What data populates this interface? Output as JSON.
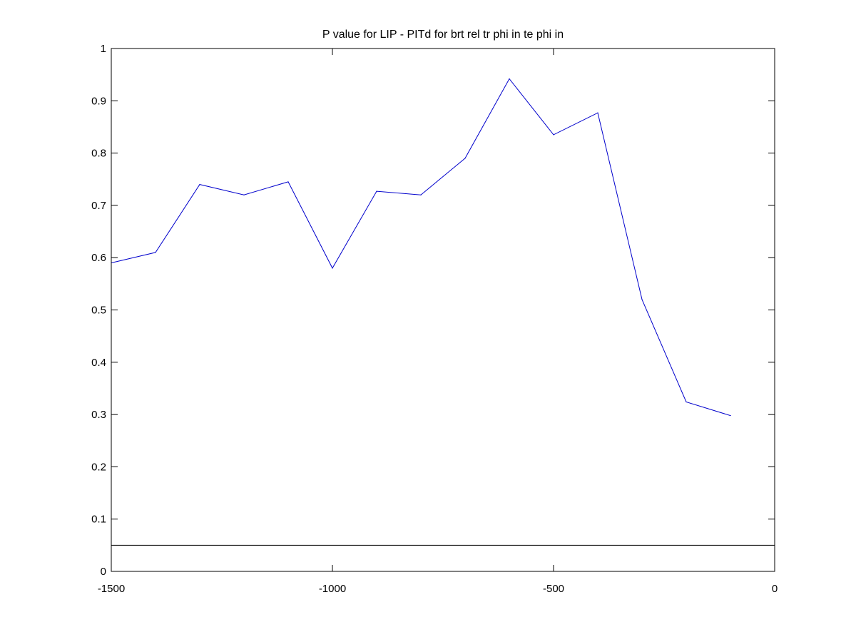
{
  "chart_data": {
    "type": "line",
    "title": "P value for LIP - PITd for brt rel tr phi in te phi in",
    "xlabel": "",
    "ylabel": "",
    "xlim": [
      -1500,
      0
    ],
    "ylim": [
      0,
      1
    ],
    "xticks": [
      -1500,
      -1000,
      -500,
      0
    ],
    "xtick_labels": [
      "-1500",
      "-1000",
      "-500",
      "0"
    ],
    "yticks": [
      0,
      0.1,
      0.2,
      0.3,
      0.4,
      0.5,
      0.6,
      0.7,
      0.8,
      0.9,
      1
    ],
    "ytick_labels": [
      "0",
      "0.1",
      "0.2",
      "0.3",
      "0.4",
      "0.5",
      "0.6",
      "0.7",
      "0.8",
      "0.9",
      "1"
    ],
    "grid": false,
    "series": [
      {
        "color": "#0000cc",
        "x": [
          -1500,
          -1400,
          -1300,
          -1200,
          -1100,
          -1000,
          -900,
          -800,
          -700,
          -600,
          -500,
          -400,
          -300,
          -200,
          -100
        ],
        "y": [
          0.59,
          0.61,
          0.74,
          0.72,
          0.745,
          0.58,
          0.727,
          0.72,
          0.79,
          0.942,
          0.835,
          0.877,
          0.52,
          0.324,
          0.298
        ]
      }
    ],
    "reference_line": {
      "y": 0.05,
      "color": "#000000"
    }
  }
}
